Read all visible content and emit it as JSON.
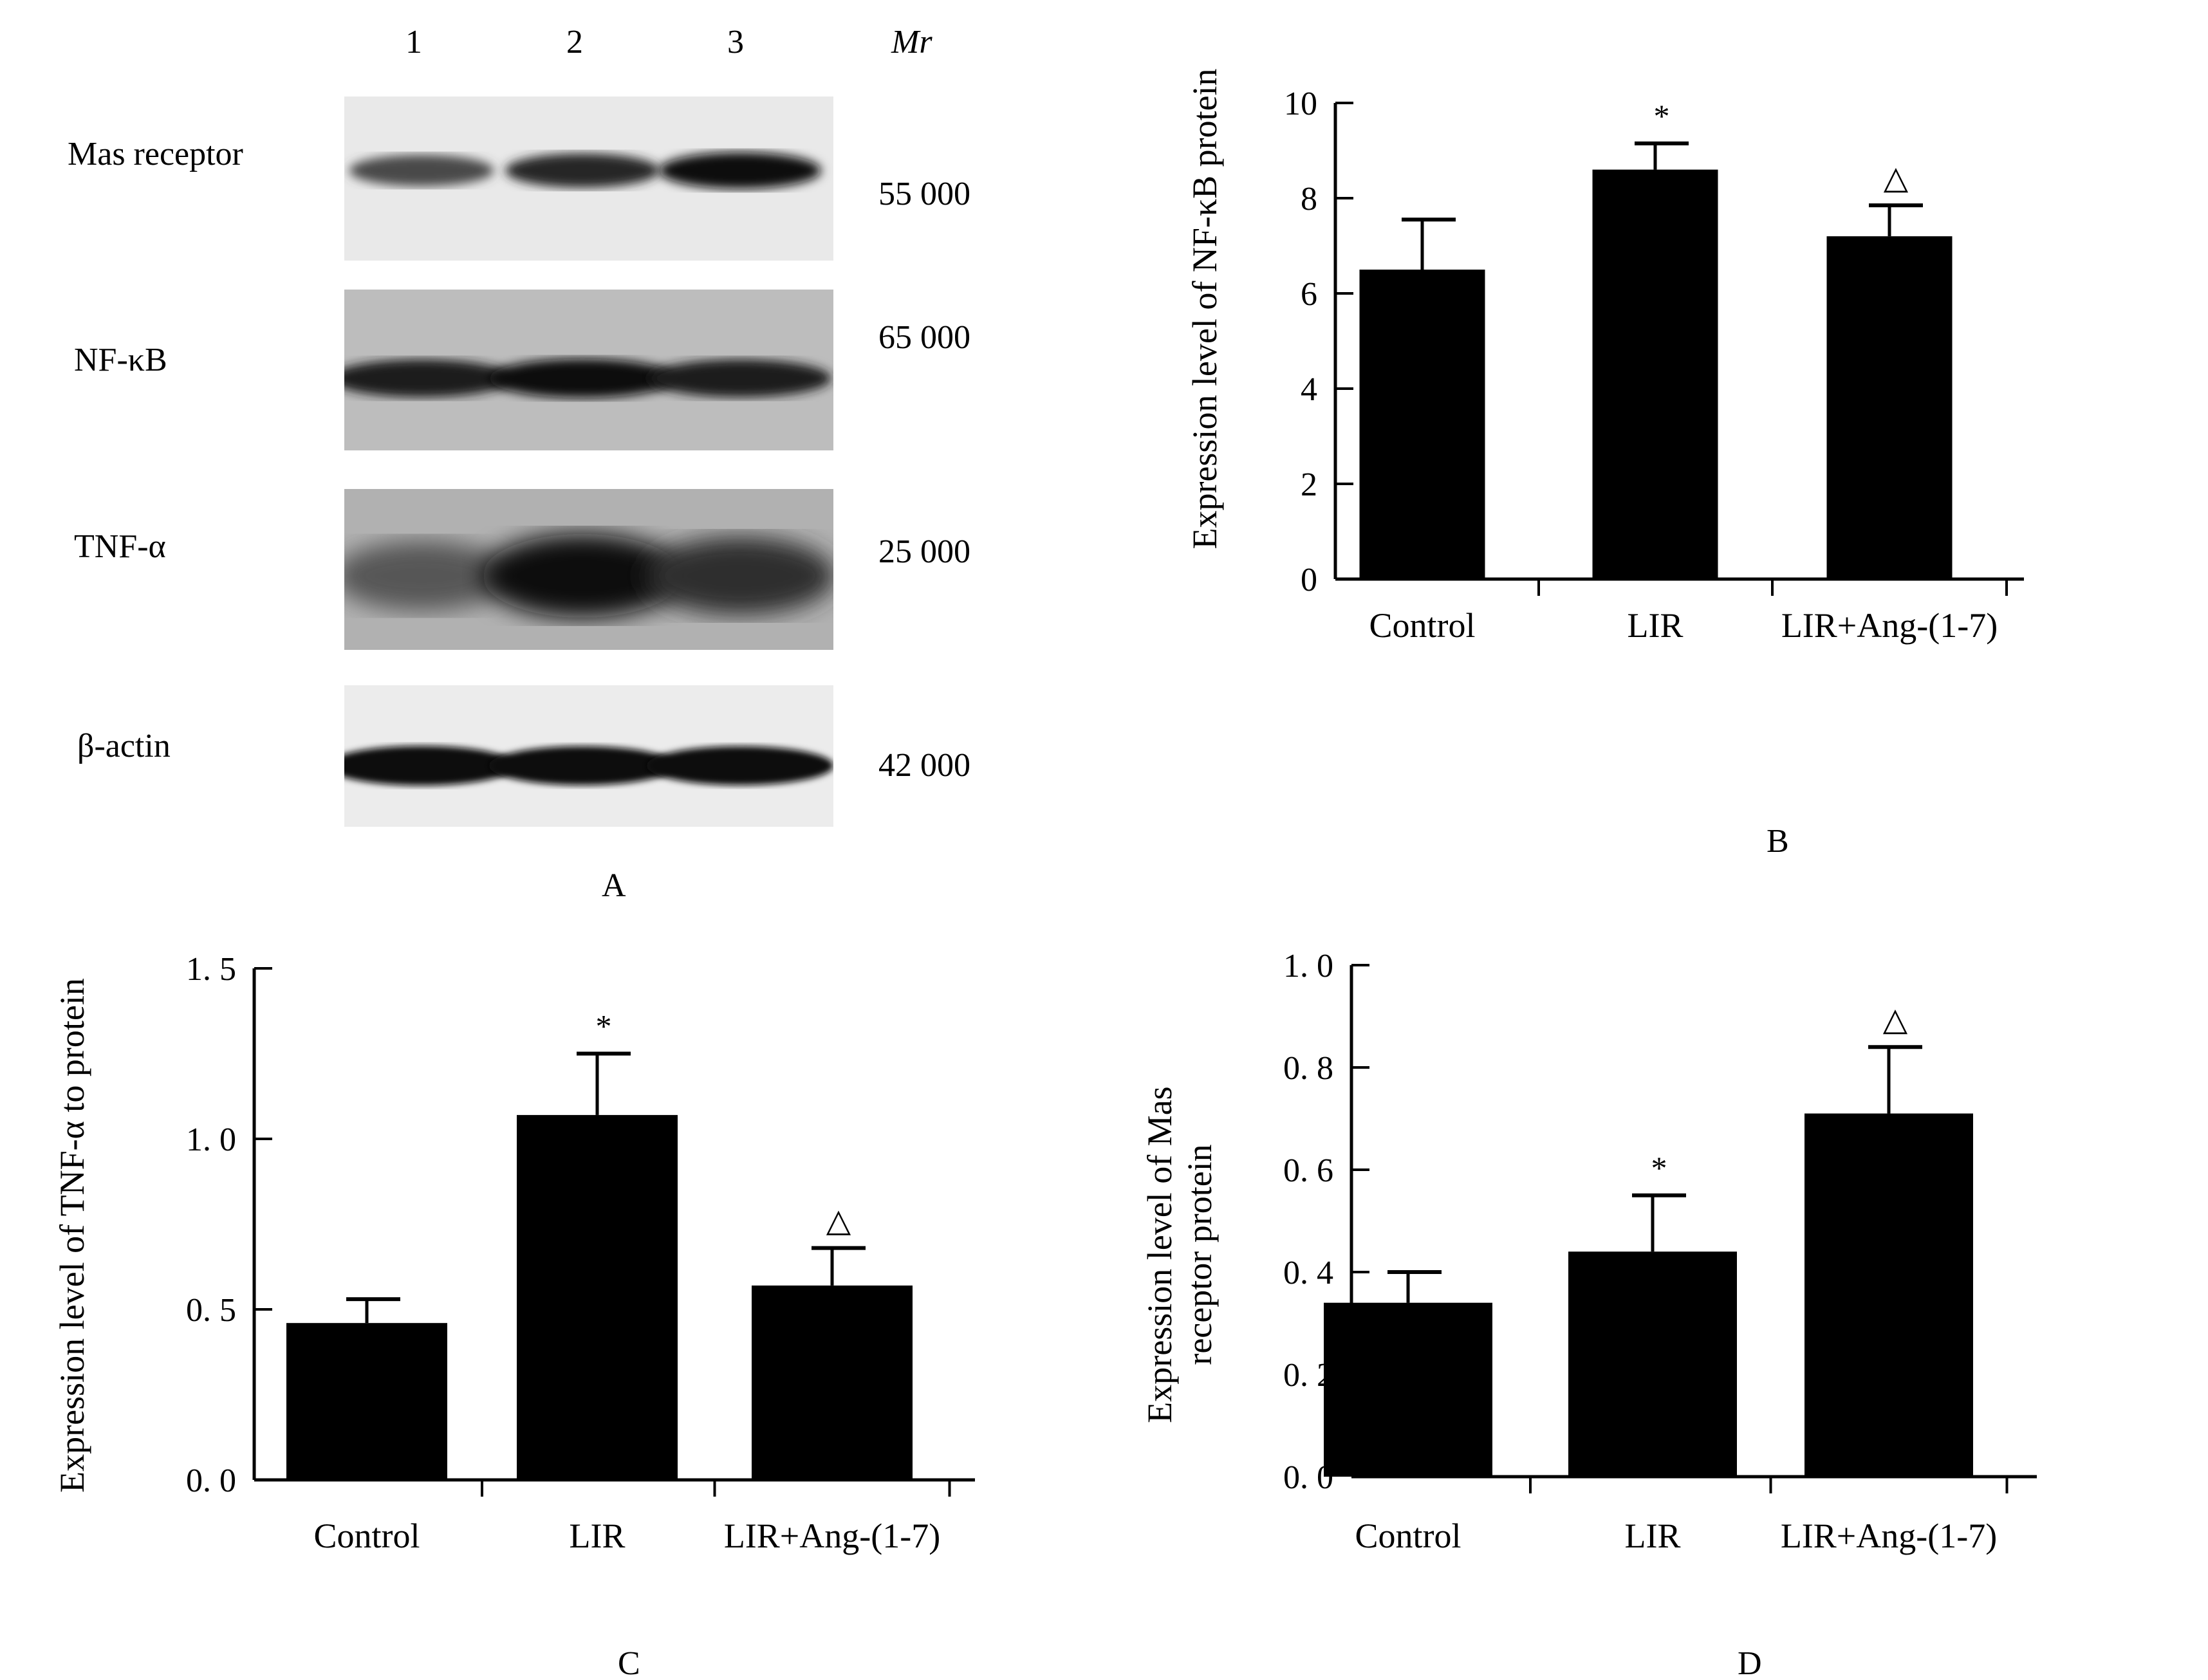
{
  "panels": {
    "A": "A",
    "B": "B",
    "C": "C",
    "D": "D"
  },
  "blot": {
    "lanes": [
      "1",
      "2",
      "3"
    ],
    "mr_label": "Mr",
    "rows": [
      {
        "label": "Mas receptor",
        "mw": "55 000",
        "intensities": [
          0.55,
          0.8,
          1.0
        ]
      },
      {
        "label": "NF-κB",
        "mw": "65 000",
        "intensities": [
          0.85,
          0.95,
          0.85
        ]
      },
      {
        "label": "TNF-α",
        "mw": "25 000",
        "intensities": [
          0.45,
          0.95,
          0.75
        ]
      },
      {
        "label": "β-actin",
        "mw": "42 000",
        "intensities": [
          1.0,
          0.95,
          0.95
        ]
      }
    ]
  },
  "chart_data": [
    {
      "panel": "B",
      "type": "bar",
      "categories": [
        "Control",
        "LIR",
        "LIR+Ang-(1-7)"
      ],
      "values": [
        6.5,
        8.6,
        7.2
      ],
      "errors": [
        1.05,
        0.55,
        0.65
      ],
      "markers": [
        "",
        "*",
        "△"
      ],
      "ylabel": "Expression level of NF-κB protein",
      "ylim": [
        0,
        10
      ],
      "ticks": [
        0,
        2,
        4,
        6,
        8,
        10
      ],
      "tick_labels": [
        "0",
        "2",
        "4",
        "6",
        "8",
        "10"
      ],
      "bar_color": "#000000"
    },
    {
      "panel": "C",
      "type": "bar",
      "categories": [
        "Control",
        "LIR",
        "LIR+Ang-(1-7)"
      ],
      "values": [
        0.46,
        1.07,
        0.57
      ],
      "errors": [
        0.07,
        0.18,
        0.11
      ],
      "markers": [
        "",
        "*",
        "△"
      ],
      "ylabel": "Expression level of TNF-α to protein",
      "ylim": [
        0,
        1.5
      ],
      "ticks": [
        0,
        0.5,
        1.0,
        1.5
      ],
      "tick_labels": [
        "0. 0",
        "0. 5",
        "1. 0",
        "1. 5"
      ],
      "bar_color": "#000000"
    },
    {
      "panel": "D",
      "type": "bar",
      "categories": [
        "Control",
        "LIR",
        "LIR+Ang-(1-7)"
      ],
      "values": [
        0.34,
        0.44,
        0.71
      ],
      "errors": [
        0.06,
        0.11,
        0.13
      ],
      "markers": [
        "",
        "*",
        "△"
      ],
      "ylabel": "Expression level of Mas",
      "ylabel2": "receptor protein",
      "ylim": [
        0,
        1.0
      ],
      "ticks": [
        0,
        0.2,
        0.4,
        0.6,
        0.8,
        1.0
      ],
      "tick_labels": [
        "0. 0",
        "0. 2",
        "0. 4",
        "0. 6",
        "0. 8",
        "1. 0"
      ],
      "bar_color": "#000000"
    }
  ]
}
